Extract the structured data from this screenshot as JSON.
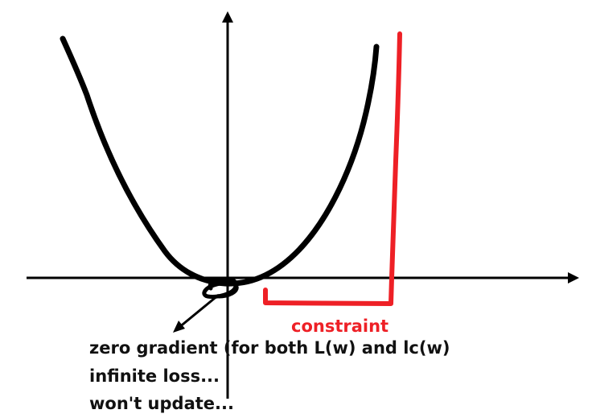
{
  "colors": {
    "ink": "#000000",
    "constraint": "#ee2026",
    "background": "#ffffff"
  },
  "labels": {
    "constraint": "constraint"
  },
  "notes": [
    "zero gradient (for both L(w) and lc(w)",
    "infinite loss...",
    "won't update..."
  ]
}
